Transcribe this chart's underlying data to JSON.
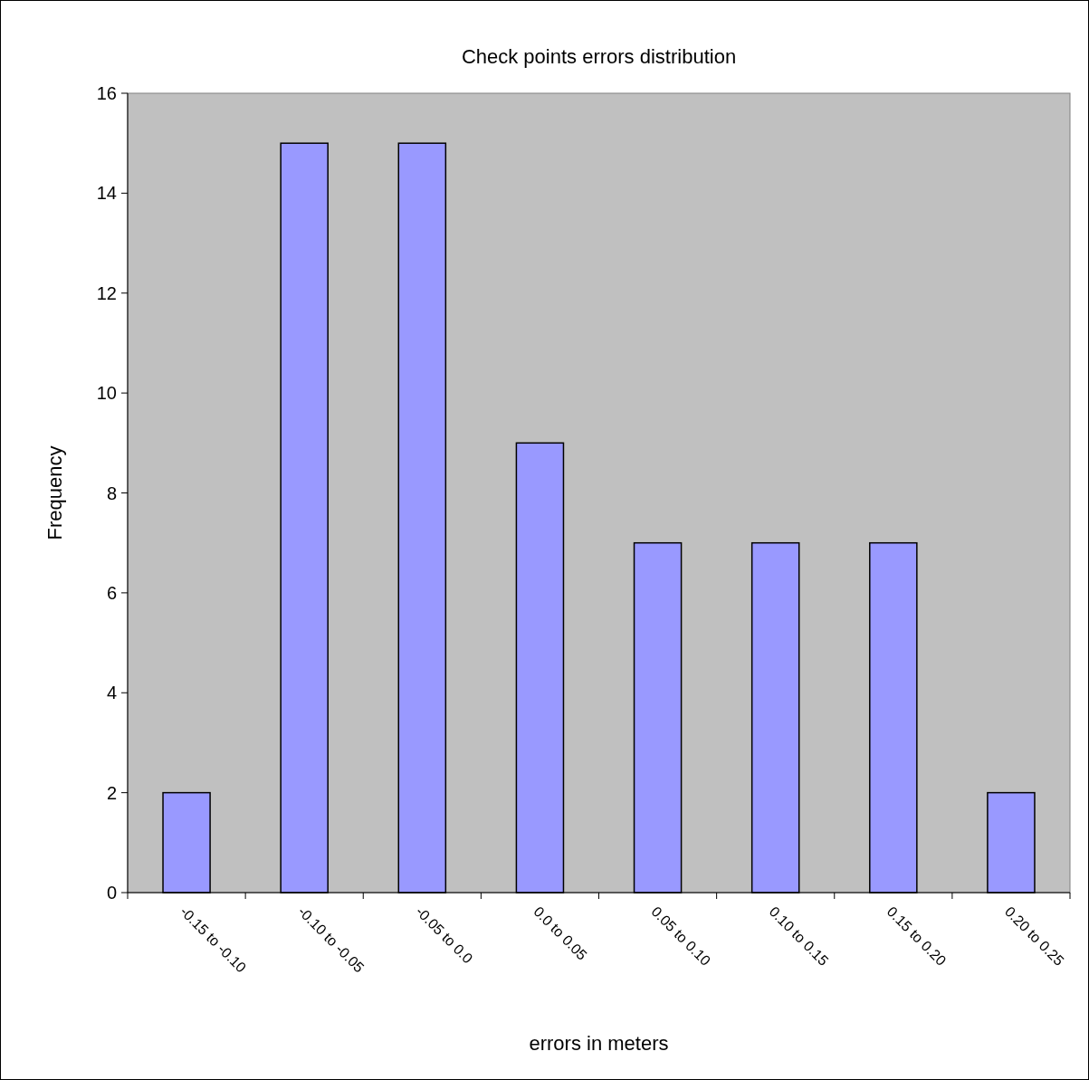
{
  "chart_data": {
    "type": "bar",
    "title": "Check points errors distribution",
    "xlabel": "errors in meters",
    "ylabel": "Frequency",
    "categories": [
      "-0.15 to -0.10",
      "-0.10 to -0.05",
      "-0.05 to 0.0",
      "0.0 to 0.05",
      "0.05 to 0.10",
      "0.10 to 0.15",
      "0.15 to 0.20",
      "0.20 to 0.25"
    ],
    "values": [
      2,
      15,
      15,
      9,
      7,
      7,
      7,
      2
    ],
    "color": "#9999ff",
    "ylim": [
      0,
      16
    ],
    "yticks": [
      0,
      2,
      4,
      6,
      8,
      10,
      12,
      14,
      16
    ]
  }
}
